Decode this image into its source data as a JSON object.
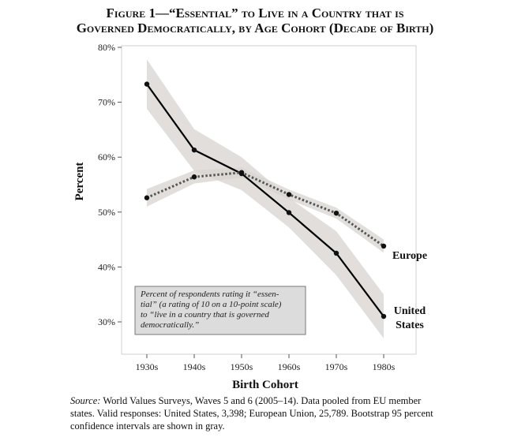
{
  "figure": {
    "title_line1": "Figure 1—“Essential” to Live in a Country that is",
    "title_line2": "Governed Democratically, by Age Cohort (Decade of Birth)"
  },
  "chart_data": {
    "type": "line",
    "xlabel": "Birth Cohort",
    "ylabel": "Percent",
    "categories": [
      "1930s",
      "1940s",
      "1950s",
      "1960s",
      "1970s",
      "1980s"
    ],
    "y_ticks": [
      "30%",
      "40%",
      "50%",
      "60%",
      "70%",
      "80%"
    ],
    "y_tick_values": [
      30,
      40,
      50,
      60,
      70,
      80
    ],
    "ylim": [
      26,
      80
    ],
    "grid": false,
    "series": [
      {
        "name": "United States",
        "label_lines": [
          "United",
          "States"
        ],
        "style": "solid",
        "color": "#000000",
        "values": [
          73.3,
          61.3,
          57.0,
          49.9,
          42.5,
          31.0
        ],
        "ci_low": [
          68.8,
          57.5,
          54.0,
          47.2,
          38.5,
          27.0
        ],
        "ci_high": [
          77.8,
          65.1,
          60.0,
          52.6,
          46.5,
          35.0
        ]
      },
      {
        "name": "Europe",
        "label_lines": [
          "Europe"
        ],
        "style": "dotted",
        "color": "#555555",
        "values": [
          52.6,
          56.4,
          57.2,
          53.2,
          49.8,
          43.8
        ],
        "ci_low": [
          51.0,
          55.2,
          56.3,
          52.3,
          48.8,
          42.6
        ],
        "ci_high": [
          54.2,
          57.6,
          58.1,
          54.1,
          50.8,
          45.0
        ]
      }
    ],
    "ci_color": "#d9d6d2",
    "annotation": {
      "lines": [
        "Percent of respondents rating it “essen-",
        "tial” (a rating of 10 on a 10-point scale)",
        "to “live in a country that is governed",
        "democratically.”"
      ]
    }
  },
  "source": {
    "label": "Source:",
    "text": "World Values Surveys, Waves 5 and 6 (2005–14). Data pooled from EU member states. Valid responses: United States, 3,398; European Union, 25,789. Bootstrap 95 percent confidence intervals are shown in gray."
  }
}
